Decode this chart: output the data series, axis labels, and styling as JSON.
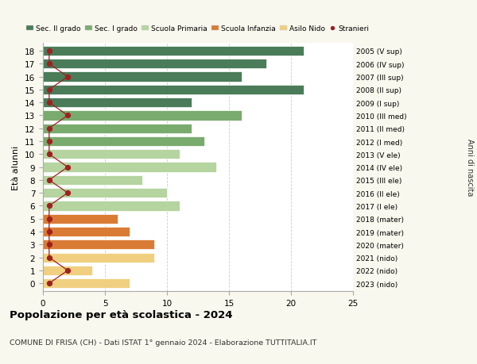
{
  "ages": [
    18,
    17,
    16,
    15,
    14,
    13,
    12,
    11,
    10,
    9,
    8,
    7,
    6,
    5,
    4,
    3,
    2,
    1,
    0
  ],
  "years_labels": [
    "2005 (V sup)",
    "2006 (IV sup)",
    "2007 (III sup)",
    "2008 (II sup)",
    "2009 (I sup)",
    "2010 (III med)",
    "2011 (II med)",
    "2012 (I med)",
    "2013 (V ele)",
    "2014 (IV ele)",
    "2015 (III ele)",
    "2016 (II ele)",
    "2017 (I ele)",
    "2018 (mater)",
    "2019 (mater)",
    "2020 (mater)",
    "2021 (nido)",
    "2022 (nido)",
    "2023 (nido)"
  ],
  "bar_values": [
    21,
    18,
    16,
    21,
    12,
    16,
    12,
    13,
    11,
    14,
    8,
    10,
    11,
    6,
    7,
    9,
    9,
    4,
    7
  ],
  "bar_colors": [
    "#4a7c59",
    "#4a7c59",
    "#4a7c59",
    "#4a7c59",
    "#4a7c59",
    "#7aab6e",
    "#7aab6e",
    "#7aab6e",
    "#b5d4a0",
    "#b5d4a0",
    "#b5d4a0",
    "#b5d4a0",
    "#b5d4a0",
    "#d97b35",
    "#d97b35",
    "#d97b35",
    "#f0d080",
    "#f0d080",
    "#f0d080"
  ],
  "stranieri_x": [
    0.5,
    0.5,
    2,
    0.5,
    0.5,
    2,
    0.5,
    0.5,
    0.5,
    2,
    0.5,
    2,
    0.5,
    0.5,
    0.5,
    0.5,
    0.5,
    2,
    0.5
  ],
  "legend_labels": [
    "Sec. II grado",
    "Sec. I grado",
    "Scuola Primaria",
    "Scuola Infanzia",
    "Asilo Nido",
    "Stranieri"
  ],
  "legend_colors": [
    "#4a7c59",
    "#7aab6e",
    "#b5d4a0",
    "#d97b35",
    "#f0d080",
    "#a02020"
  ],
  "ylabel": "Età alunni",
  "right_ylabel": "Anni di nascita",
  "title": "Popolazione per età scolastica - 2024",
  "subtitle": "COMUNE DI FRISA (CH) - Dati ISTAT 1° gennaio 2024 - Elaborazione TUTTITALIA.IT",
  "xlim": [
    0,
    25
  ],
  "bg_color": "#f8f8ee",
  "plot_bg_color": "#ffffff",
  "grid_color": "#cccccc"
}
